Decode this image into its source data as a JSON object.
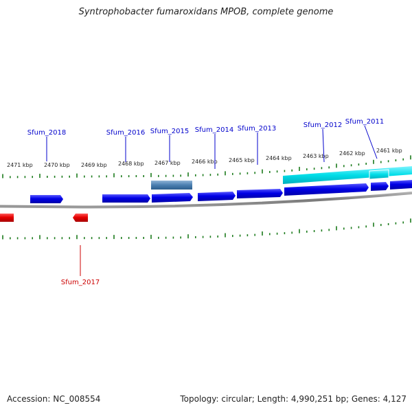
{
  "title": "Syntrophobacter fumaroxidans MPOB, complete genome",
  "footer": {
    "accession": "Accession: NC_008554",
    "topology": "Topology: circular; Length: 4,990,251 bp; Genes: 4,127"
  },
  "kbp_ticks": [
    "2471 kbp",
    "2470 kbp",
    "2469 kbp",
    "2468 kbp",
    "2467 kbp",
    "2466 kbp",
    "2465 kbp",
    "2464 kbp",
    "2463 kbp",
    "2462 kbp",
    "2461 kbp"
  ],
  "gene_labels_top": [
    "Sfum_2018",
    "Sfum_2016",
    "Sfum_2015",
    "Sfum_2014",
    "Sfum_2013",
    "Sfum_2012",
    "Sfum_2011"
  ],
  "gene_labels_bottom": [
    "Sfum_2017"
  ],
  "colors": {
    "forward_gene": "#0000e6",
    "reverse_gene": "#e60000",
    "top_label": "#0000cc",
    "bottom_label": "#cc0000",
    "tick": "#1a7a1a",
    "backbone": "#808080",
    "feature_cyan": "#00ccdd",
    "feature_steel": "#4a7fb0"
  }
}
